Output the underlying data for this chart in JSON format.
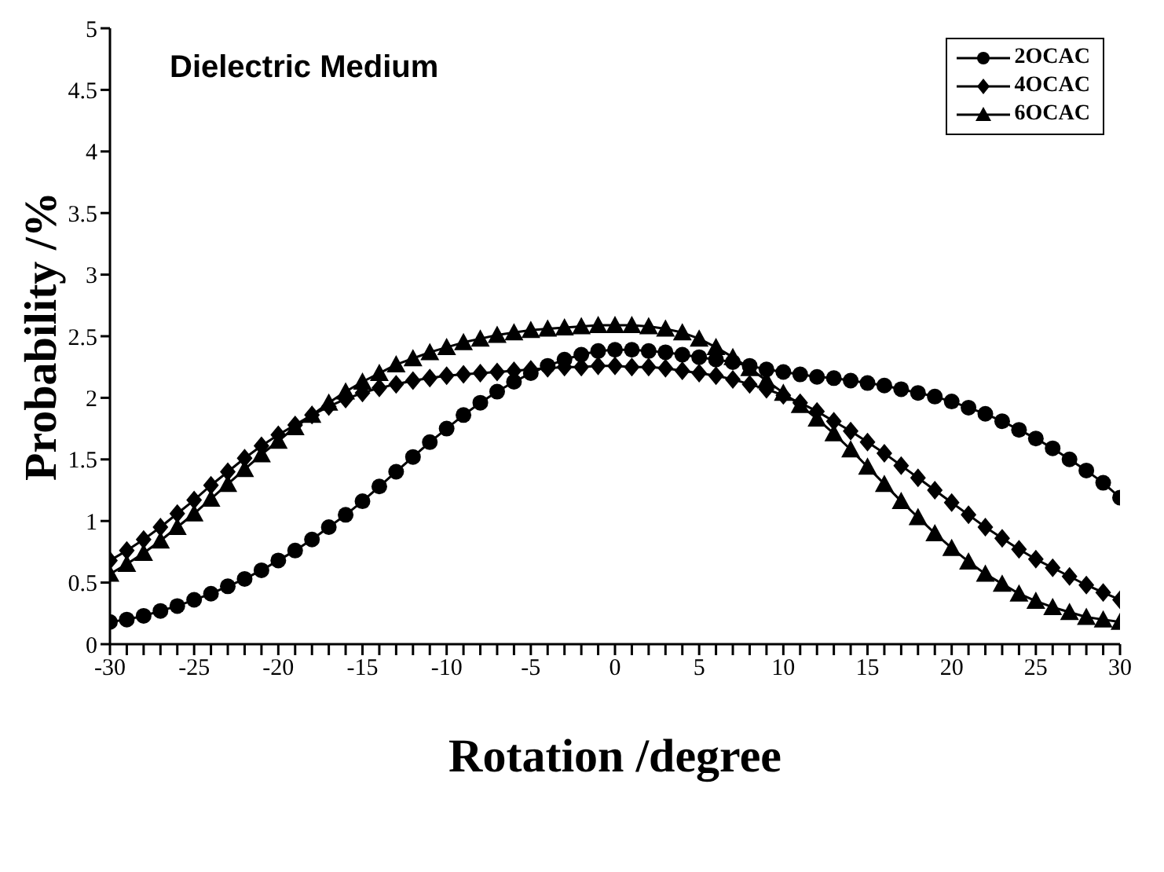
{
  "chart_data": {
    "type": "line",
    "title": "Dielectric Medium",
    "xlabel": "Rotation /degree",
    "ylabel": "Probability /%",
    "x": [
      -30,
      -29,
      -28,
      -27,
      -26,
      -25,
      -24,
      -23,
      -22,
      -21,
      -20,
      -19,
      -18,
      -17,
      -16,
      -15,
      -14,
      -13,
      -12,
      -11,
      -10,
      -9,
      -8,
      -7,
      -6,
      -5,
      -4,
      -3,
      -2,
      -1,
      0,
      1,
      2,
      3,
      4,
      5,
      6,
      7,
      8,
      9,
      10,
      11,
      12,
      13,
      14,
      15,
      16,
      17,
      18,
      19,
      20,
      21,
      22,
      23,
      24,
      25,
      26,
      27,
      28,
      29,
      30
    ],
    "series": [
      {
        "name": "2OCAC",
        "color": "#000000",
        "marker": "circle",
        "values": [
          0.18,
          0.2,
          0.23,
          0.27,
          0.31,
          0.36,
          0.41,
          0.47,
          0.53,
          0.6,
          0.68,
          0.76,
          0.85,
          0.95,
          1.05,
          1.16,
          1.28,
          1.4,
          1.52,
          1.64,
          1.75,
          1.86,
          1.96,
          2.05,
          2.13,
          2.2,
          2.26,
          2.31,
          2.35,
          2.38,
          2.39,
          2.39,
          2.38,
          2.37,
          2.35,
          2.33,
          2.31,
          2.29,
          2.26,
          2.23,
          2.21,
          2.19,
          2.17,
          2.16,
          2.14,
          2.12,
          2.1,
          2.07,
          2.04,
          2.01,
          1.97,
          1.92,
          1.87,
          1.81,
          1.74,
          1.67,
          1.59,
          1.5,
          1.41,
          1.31,
          1.19
        ]
      },
      {
        "name": "4OCAC",
        "color": "#000000",
        "marker": "diamond",
        "values": [
          0.68,
          0.76,
          0.85,
          0.95,
          1.06,
          1.17,
          1.29,
          1.4,
          1.51,
          1.61,
          1.7,
          1.78,
          1.86,
          1.93,
          1.99,
          2.04,
          2.08,
          2.11,
          2.14,
          2.16,
          2.18,
          2.19,
          2.2,
          2.21,
          2.22,
          2.23,
          2.24,
          2.25,
          2.25,
          2.26,
          2.26,
          2.25,
          2.25,
          2.24,
          2.22,
          2.2,
          2.18,
          2.15,
          2.11,
          2.07,
          2.02,
          1.96,
          1.89,
          1.81,
          1.73,
          1.64,
          1.55,
          1.45,
          1.35,
          1.25,
          1.15,
          1.05,
          0.95,
          0.86,
          0.77,
          0.69,
          0.62,
          0.55,
          0.48,
          0.42,
          0.36
        ]
      },
      {
        "name": "6OCAC",
        "color": "#000000",
        "marker": "triangle",
        "values": [
          0.57,
          0.65,
          0.74,
          0.84,
          0.95,
          1.06,
          1.18,
          1.3,
          1.42,
          1.54,
          1.65,
          1.76,
          1.86,
          1.96,
          2.05,
          2.13,
          2.2,
          2.27,
          2.32,
          2.37,
          2.41,
          2.45,
          2.48,
          2.51,
          2.53,
          2.55,
          2.56,
          2.57,
          2.58,
          2.59,
          2.59,
          2.59,
          2.58,
          2.56,
          2.53,
          2.48,
          2.41,
          2.33,
          2.24,
          2.14,
          2.04,
          1.94,
          1.83,
          1.71,
          1.58,
          1.44,
          1.3,
          1.16,
          1.03,
          0.9,
          0.78,
          0.67,
          0.57,
          0.49,
          0.41,
          0.35,
          0.3,
          0.26,
          0.22,
          0.2,
          0.18
        ]
      }
    ],
    "xlim": [
      -30,
      30
    ],
    "xticks": [
      -30,
      {
        "value": -29,
        "label": null
      },
      {
        "value": -28,
        "label": null
      },
      {
        "value": -27,
        "label": null
      },
      {
        "value": -26,
        "label": null
      },
      -25,
      {
        "value": -24,
        "label": null
      },
      {
        "value": -23,
        "label": null
      },
      {
        "value": -22,
        "label": null
      },
      {
        "value": -21,
        "label": null
      },
      -20,
      {
        "value": -19,
        "label": null
      },
      {
        "value": -18,
        "label": null
      },
      {
        "value": -17,
        "label": null
      },
      {
        "value": -16,
        "label": null
      },
      -15,
      {
        "value": -14,
        "label": null
      },
      {
        "value": -13,
        "label": null
      },
      {
        "value": -12,
        "label": null
      },
      {
        "value": -11,
        "label": null
      },
      -10,
      {
        "value": -9,
        "label": null
      },
      {
        "value": -8,
        "label": null
      },
      {
        "value": -7,
        "label": null
      },
      {
        "value": -6,
        "label": null
      },
      -5,
      {
        "value": -4,
        "label": null
      },
      {
        "value": -3,
        "label": null
      },
      {
        "value": -2,
        "label": null
      },
      {
        "value": -1,
        "label": null
      },
      0,
      {
        "value": 1,
        "label": null
      },
      {
        "value": 2,
        "label": null
      },
      {
        "value": 3,
        "label": null
      },
      {
        "value": 4,
        "label": null
      },
      5,
      {
        "value": 6,
        "label": null
      },
      {
        "value": 7,
        "label": null
      },
      {
        "value": 8,
        "label": null
      },
      {
        "value": 9,
        "label": null
      },
      10,
      {
        "value": 11,
        "label": null
      },
      {
        "value": 12,
        "label": null
      },
      {
        "value": 13,
        "label": null
      },
      {
        "value": 14,
        "label": null
      },
      15,
      {
        "value": 16,
        "label": null
      },
      {
        "value": 17,
        "label": null
      },
      {
        "value": 18,
        "label": null
      },
      {
        "value": 19,
        "label": null
      },
      20,
      {
        "value": 21,
        "label": null
      },
      {
        "value": 22,
        "label": null
      },
      {
        "value": 23,
        "label": null
      },
      {
        "value": 24,
        "label": null
      },
      25,
      {
        "value": 26,
        "label": null
      },
      {
        "value": 27,
        "label": null
      },
      {
        "value": 28,
        "label": null
      },
      {
        "value": 29,
        "label": null
      },
      30
    ],
    "ylim": [
      0,
      5
    ],
    "yticks": [
      0,
      0.5,
      1,
      1.5,
      2,
      2.5,
      3,
      3.5,
      4,
      4.5,
      5
    ],
    "grid": false,
    "legend": "top right",
    "line_style": "solid"
  }
}
